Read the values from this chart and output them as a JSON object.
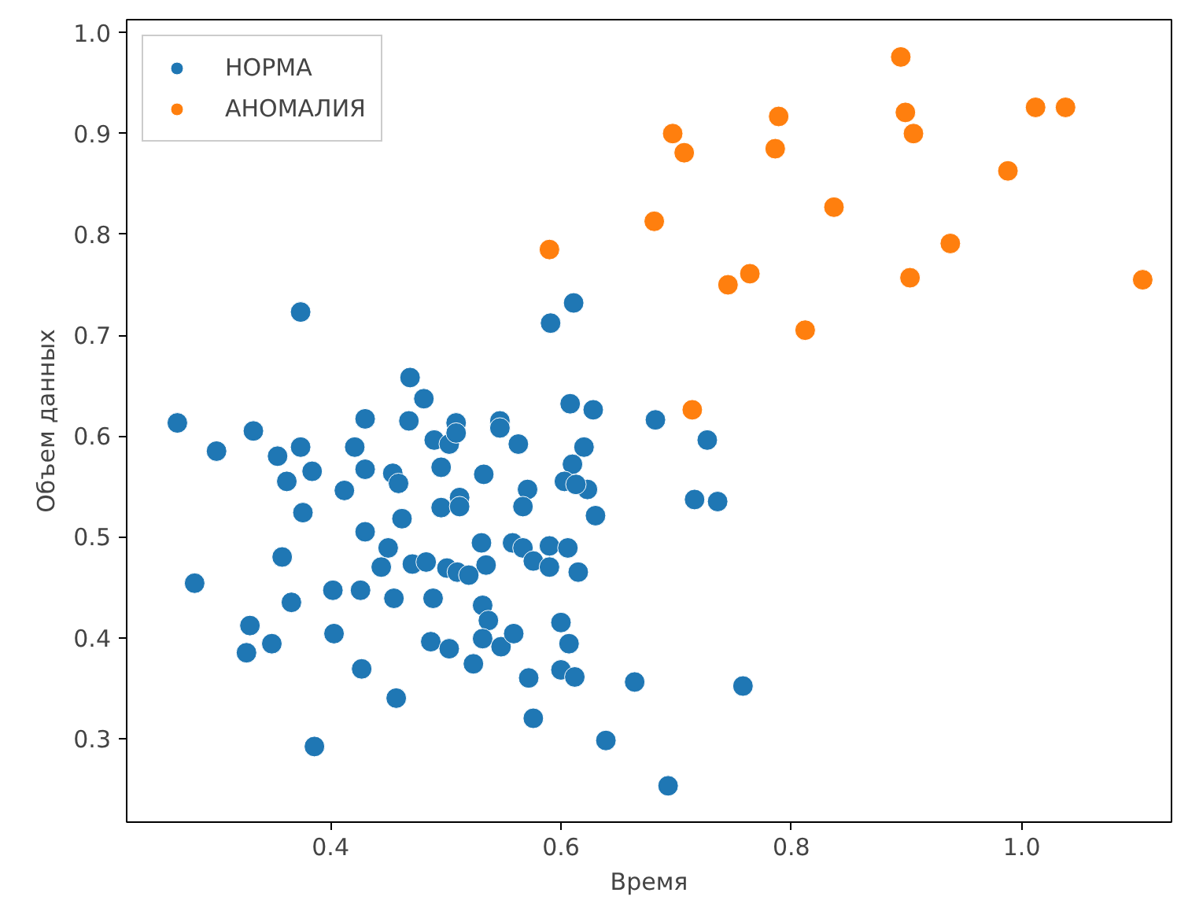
{
  "chart_data": {
    "type": "scatter",
    "xlabel": "Время",
    "ylabel": "Объем данных",
    "xlim": [
      0.223,
      1.13
    ],
    "ylim": [
      0.217,
      1.013
    ],
    "xticks": [
      0.4,
      0.6,
      0.8,
      {
        "value": 1.0,
        "label": "1.0"
      }
    ],
    "yticks": [
      0.3,
      0.4,
      0.5,
      0.6,
      0.7,
      0.8,
      0.9,
      {
        "value": 1.0,
        "label": "1.0"
      }
    ],
    "grid": false,
    "legend": "top left",
    "marker": "circle",
    "series": [
      {
        "name": "НОРМА",
        "color": "#1f77b4",
        "x": [
          0.374,
          0.267,
          0.301,
          0.333,
          0.354,
          0.374,
          0.362,
          0.384,
          0.376,
          0.412,
          0.421,
          0.43,
          0.43,
          0.43,
          0.469,
          0.481,
          0.468,
          0.454,
          0.459,
          0.462,
          0.45,
          0.49,
          0.503,
          0.509,
          0.509,
          0.496,
          0.496,
          0.512,
          0.512,
          0.533,
          0.547,
          0.547,
          0.563,
          0.571,
          0.567,
          0.531,
          0.558,
          0.567,
          0.358,
          0.444,
          0.471,
          0.483,
          0.535,
          0.501,
          0.51,
          0.52,
          0.611,
          0.591,
          0.608,
          0.628,
          0.682,
          0.727,
          0.62,
          0.61,
          0.603,
          0.623,
          0.63,
          0.613,
          0.716,
          0.736,
          0.59,
          0.606,
          0.576,
          0.59,
          0.615,
          0.282,
          0.366,
          0.33,
          0.327,
          0.349,
          0.402,
          0.403,
          0.426,
          0.427,
          0.455,
          0.457,
          0.386,
          0.489,
          0.487,
          0.503,
          0.524,
          0.532,
          0.537,
          0.532,
          0.548,
          0.559,
          0.572,
          0.576,
          0.6,
          0.607,
          0.6,
          0.612,
          0.664,
          0.758,
          0.639,
          0.693
        ],
        "values": [
          0.723,
          0.613,
          0.585,
          0.605,
          0.58,
          0.589,
          0.555,
          0.565,
          0.524,
          0.546,
          0.589,
          0.617,
          0.567,
          0.505,
          0.658,
          0.637,
          0.615,
          0.563,
          0.553,
          0.518,
          0.489,
          0.596,
          0.592,
          0.613,
          0.603,
          0.569,
          0.529,
          0.539,
          0.53,
          0.562,
          0.615,
          0.608,
          0.592,
          0.547,
          0.53,
          0.494,
          0.494,
          0.489,
          0.48,
          0.47,
          0.473,
          0.475,
          0.472,
          0.469,
          0.465,
          0.462,
          0.732,
          0.712,
          0.632,
          0.626,
          0.616,
          0.596,
          0.589,
          0.572,
          0.555,
          0.547,
          0.521,
          0.552,
          0.537,
          0.535,
          0.491,
          0.489,
          0.476,
          0.47,
          0.465,
          0.454,
          0.435,
          0.412,
          0.385,
          0.394,
          0.447,
          0.404,
          0.447,
          0.369,
          0.439,
          0.34,
          0.292,
          0.439,
          0.396,
          0.389,
          0.374,
          0.432,
          0.417,
          0.399,
          0.391,
          0.404,
          0.36,
          0.32,
          0.415,
          0.394,
          0.368,
          0.361,
          0.356,
          0.352,
          0.298,
          0.253
        ]
      },
      {
        "name": "АНОМАЛИЯ",
        "color": "#ff7f0e",
        "x": [
          0.59,
          0.681,
          0.697,
          0.707,
          0.714,
          0.745,
          0.764,
          0.786,
          0.789,
          0.812,
          0.837,
          0.895,
          0.899,
          0.906,
          0.903,
          0.938,
          0.988,
          1.012,
          1.038,
          1.105
        ],
        "values": [
          0.785,
          0.813,
          0.9,
          0.881,
          0.626,
          0.75,
          0.761,
          0.885,
          0.917,
          0.705,
          0.827,
          0.976,
          0.921,
          0.9,
          0.757,
          0.791,
          0.863,
          0.926,
          0.926,
          0.755
        ]
      }
    ]
  }
}
